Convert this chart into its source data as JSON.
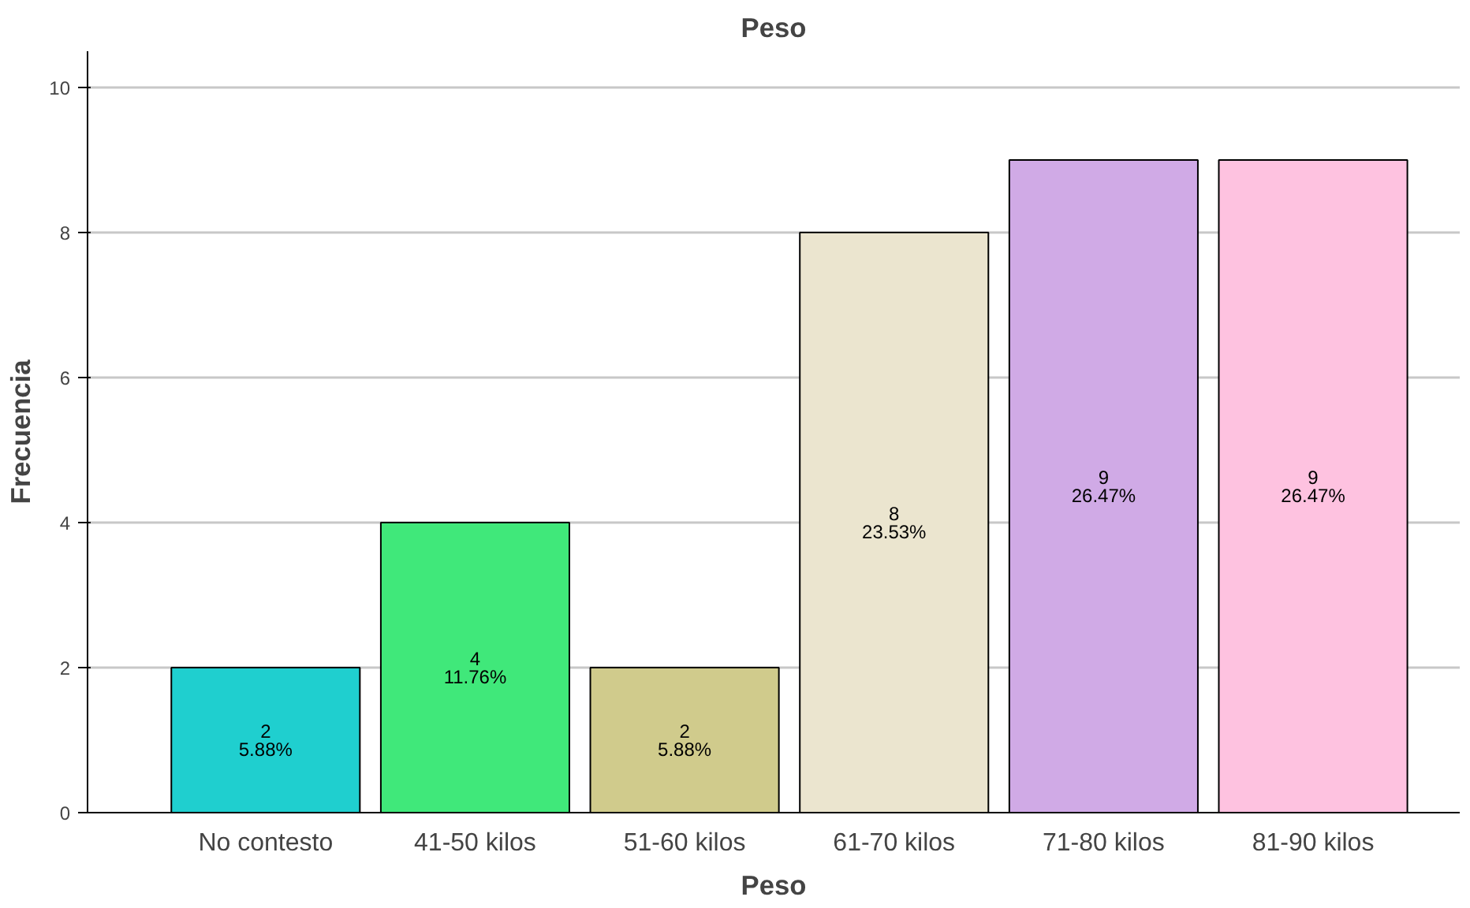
{
  "chart_data": {
    "type": "bar",
    "title": "Peso",
    "xlabel": "Peso",
    "ylabel": "Frecuencia",
    "categories": [
      "No contesto",
      "41-50 kilos",
      "51-60 kilos",
      "61-70 kilos",
      "71-80 kilos",
      "81-90 kilos"
    ],
    "values": [
      2,
      4,
      2,
      8,
      9,
      9
    ],
    "colors": [
      "#1fcfcf",
      "#40e87a",
      "#d0cb8c",
      "#ebe5cf",
      "#d0aae6",
      "#fec2e0"
    ],
    "value_labels": [
      "2\n5.88%",
      "4\n11.76%",
      "2\n5.88%",
      "8\n23.53%",
      "9\n26.47%",
      "9\n26.47%"
    ],
    "ylim": [
      0,
      10.5
    ],
    "yticks": [
      0,
      2,
      4,
      6,
      8,
      10
    ],
    "grid": "y"
  }
}
